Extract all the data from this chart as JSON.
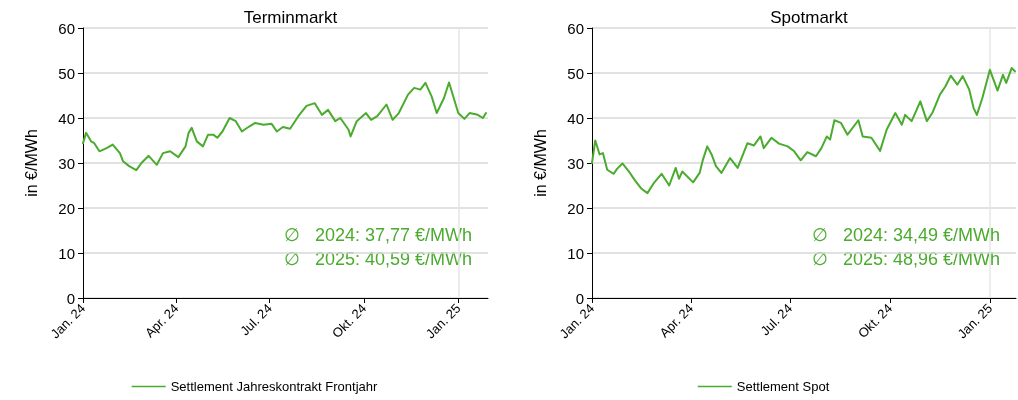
{
  "chart_data": [
    {
      "type": "line",
      "title": "Terminmarkt",
      "ylabel": "in €/MWh",
      "xlim": [
        "2024-01-01",
        "2025-01-30"
      ],
      "ylim": [
        0,
        60
      ],
      "yticks": [
        0,
        10,
        20,
        30,
        40,
        50,
        60
      ],
      "xticks": [
        {
          "value": "2024-01-01",
          "label": "Jan. 24"
        },
        {
          "value": "2024-04-01",
          "label": "Apr. 24"
        },
        {
          "value": "2024-07-01",
          "label": "Jul. 24"
        },
        {
          "value": "2024-10-01",
          "label": "Okt. 24"
        },
        {
          "value": "2025-01-01",
          "label": "Jan. 25"
        }
      ],
      "grid": "y",
      "legend": "bottom",
      "marker": "none",
      "line_style": "solid",
      "ref_lines": [
        {
          "axis": "x",
          "value": "2025-01-01",
          "color": "#e6e6e6"
        }
      ],
      "annotations": [
        "∅   2024: 37,77 €/MWh",
        "∅   2025: 40,59 €/MWh"
      ],
      "series": [
        {
          "name": "Settlement Jahreskontrakt Frontjahr",
          "color": "#4aab2e",
          "x": [
            "2024-01-01",
            "2024-01-04",
            "2024-01-09",
            "2024-01-12",
            "2024-01-17",
            "2024-01-24",
            "2024-01-30",
            "2024-02-06",
            "2024-02-09",
            "2024-02-15",
            "2024-02-22",
            "2024-02-27",
            "2024-03-05",
            "2024-03-13",
            "2024-03-19",
            "2024-03-26",
            "2024-04-03",
            "2024-04-10",
            "2024-04-13",
            "2024-04-16",
            "2024-04-21",
            "2024-04-27",
            "2024-05-02",
            "2024-05-07",
            "2024-05-11",
            "2024-05-16",
            "2024-05-23",
            "2024-05-29",
            "2024-06-04",
            "2024-06-11",
            "2024-06-17",
            "2024-06-25",
            "2024-07-03",
            "2024-07-08",
            "2024-07-14",
            "2024-07-21",
            "2024-07-29",
            "2024-08-06",
            "2024-08-14",
            "2024-08-21",
            "2024-08-27",
            "2024-09-03",
            "2024-09-08",
            "2024-09-16",
            "2024-09-18",
            "2024-09-24",
            "2024-10-03",
            "2024-10-08",
            "2024-10-14",
            "2024-10-23",
            "2024-10-29",
            "2024-11-04",
            "2024-11-13",
            "2024-11-19",
            "2024-11-25",
            "2024-11-30",
            "2024-12-06",
            "2024-12-11",
            "2024-12-18",
            "2024-12-23",
            "2025-01-01",
            "2025-01-07",
            "2025-01-12",
            "2025-01-20",
            "2025-01-25",
            "2025-01-28"
          ],
          "values": [
            34.4,
            36.7,
            34.8,
            34.4,
            32.6,
            33.3,
            34.1,
            32.2,
            30.4,
            29.3,
            28.4,
            30,
            31.6,
            29.6,
            32.2,
            32.6,
            31.3,
            33.7,
            36.7,
            37.8,
            34.8,
            33.7,
            36.3,
            36.3,
            35.6,
            37,
            40,
            39.3,
            37,
            38.1,
            38.9,
            38.5,
            38.7,
            37,
            38,
            37.6,
            40.4,
            42.7,
            43.3,
            40.7,
            41.8,
            39.3,
            40,
            37.4,
            35.9,
            39.3,
            41.1,
            39.6,
            40.4,
            43,
            39.6,
            41.1,
            45.2,
            46.7,
            46.3,
            47.8,
            44.8,
            41.1,
            44.4,
            47.9,
            41.1,
            39.8,
            41.1,
            40.7,
            40,
            41.1
          ]
        }
      ]
    },
    {
      "type": "line",
      "title": "Spotmarkt",
      "ylabel": "in €/MWh",
      "xlim": [
        "2024-01-01",
        "2025-01-25"
      ],
      "ylim": [
        0,
        60
      ],
      "yticks": [
        0,
        10,
        20,
        30,
        40,
        50,
        60
      ],
      "xticks": [
        {
          "value": "2024-01-01",
          "label": "Jan. 24"
        },
        {
          "value": "2024-04-01",
          "label": "Apr. 24"
        },
        {
          "value": "2024-07-01",
          "label": "Jul. 24"
        },
        {
          "value": "2024-10-01",
          "label": "Okt. 24"
        },
        {
          "value": "2025-01-01",
          "label": "Jan. 25"
        }
      ],
      "grid": "y",
      "legend": "bottom",
      "marker": "none",
      "line_style": "solid",
      "ref_lines": [
        {
          "axis": "x",
          "value": "2025-01-01",
          "color": "#e6e6e6"
        }
      ],
      "annotations": [
        "∅   2024: 34,49 €/MWh",
        "∅   2025: 48,96 €/MWh"
      ],
      "series": [
        {
          "name": "Settlement Spot",
          "color": "#4aab2e",
          "x": [
            "2024-01-01",
            "2024-01-04",
            "2024-01-08",
            "2024-01-11",
            "2024-01-15",
            "2024-01-21",
            "2024-01-24",
            "2024-01-29",
            "2024-02-04",
            "2024-02-09",
            "2024-02-15",
            "2024-02-21",
            "2024-02-27",
            "2024-03-05",
            "2024-03-12",
            "2024-03-18",
            "2024-03-21",
            "2024-03-24",
            "2024-04-03",
            "2024-04-09",
            "2024-04-12",
            "2024-04-16",
            "2024-04-20",
            "2024-04-24",
            "2024-04-29",
            "2024-05-07",
            "2024-05-14",
            "2024-05-23",
            "2024-05-29",
            "2024-06-04",
            "2024-06-07",
            "2024-06-14",
            "2024-06-21",
            "2024-06-29",
            "2024-07-05",
            "2024-07-11",
            "2024-07-17",
            "2024-07-25",
            "2024-07-30",
            "2024-08-04",
            "2024-08-07",
            "2024-08-11",
            "2024-08-17",
            "2024-08-23",
            "2024-09-02",
            "2024-09-06",
            "2024-09-14",
            "2024-09-22",
            "2024-09-28",
            "2024-10-06",
            "2024-10-12",
            "2024-10-15",
            "2024-10-21",
            "2024-10-29",
            "2024-11-04",
            "2024-11-09",
            "2024-11-16",
            "2024-11-21",
            "2024-11-26",
            "2024-12-02",
            "2024-12-07",
            "2024-12-13",
            "2024-12-17",
            "2024-12-20",
            "2024-12-25",
            "2025-01-01",
            "2025-01-08",
            "2025-01-13",
            "2025-01-16",
            "2025-01-21",
            "2025-01-24"
          ],
          "values": [
            30,
            35,
            31.9,
            32.2,
            28.5,
            27.6,
            28.7,
            29.9,
            28.1,
            26.3,
            24.4,
            23.3,
            25.6,
            27.6,
            25,
            28.9,
            26.5,
            28.1,
            25.7,
            27.8,
            30.7,
            33.7,
            31.9,
            29.3,
            27.8,
            31.1,
            28.9,
            34.4,
            33.9,
            35.9,
            33.3,
            35.6,
            34.3,
            33.7,
            32.6,
            30.6,
            32.4,
            31.5,
            33.3,
            35.9,
            35.2,
            39.5,
            38.9,
            36.3,
            39.5,
            35.9,
            35.6,
            32.7,
            37.4,
            41.1,
            38.5,
            40.7,
            39.3,
            43.7,
            39.3,
            41.1,
            45.2,
            47,
            49.4,
            47.4,
            49.3,
            46.3,
            42.2,
            40.7,
            44.4,
            50.7,
            46.1,
            49.6,
            47.8,
            51.1,
            50.4
          ]
        }
      ]
    }
  ]
}
